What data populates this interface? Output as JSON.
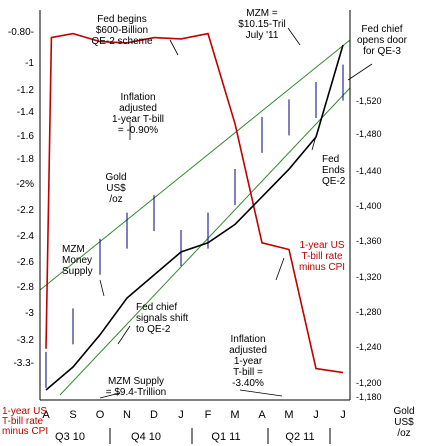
{
  "chart_data": {
    "type": "line",
    "title": "",
    "left_axis": {
      "ticks": [
        "-0.80-",
        "-1",
        "-1.2",
        "-1.4",
        "-1.6",
        "-1.8",
        "-2%",
        "-2.2",
        "-2.4",
        "-2.6",
        "-2.8",
        "-3",
        "-3.2",
        "-3.3-"
      ],
      "title_lines": [
        "1-year US",
        "T-bill rate",
        "minus CPI"
      ]
    },
    "right_axis": {
      "ticks": [
        "-1,520",
        "-1,480",
        "-1,440",
        "-1,400",
        "-1,360",
        "-1,320",
        "-1,280",
        "-1,240",
        "-1,200",
        "-1,180"
      ],
      "title_lines": [
        "Gold",
        "US$",
        "/oz"
      ]
    },
    "x_axis": {
      "months": [
        "A",
        "S",
        "O",
        "N",
        "D",
        "J",
        "F",
        "M",
        "A",
        "M",
        "J",
        "J"
      ],
      "quarters": [
        "Q3 10",
        "Q4 10",
        "Q1 11",
        "Q2 11"
      ]
    },
    "series": [
      {
        "name": "1-year US T-bill rate minus CPI",
        "color": "#c00000",
        "x": [
          "Aug-10",
          "Aug-10",
          "Sep-10",
          "Oct-10",
          "Nov-10",
          "Dec-10",
          "Jan-11",
          "Feb-11",
          "Mar-11",
          "Apr-11",
          "May-11",
          "Jun-11",
          "Jul-11"
        ],
        "values": [
          -3.2,
          -0.85,
          -0.82,
          -0.88,
          -0.89,
          -0.85,
          -0.86,
          -0.82,
          -1.5,
          -2.4,
          -2.45,
          -3.35,
          -3.38
        ]
      },
      {
        "name": "MZM Money Supply",
        "color": "#000000",
        "x": [
          "Aug-10",
          "Sep-10",
          "Oct-10",
          "Nov-10",
          "Dec-10",
          "Jan-11",
          "Feb-11",
          "Mar-11",
          "Apr-11",
          "May-11",
          "Jun-11",
          "Jul-11"
        ],
        "values": [
          9.4,
          9.45,
          9.52,
          9.6,
          9.65,
          9.7,
          9.72,
          9.76,
          9.82,
          9.88,
          9.95,
          10.15
        ]
      },
      {
        "name": "Gold US$/oz",
        "color": "#000080",
        "type": "high-low",
        "x": [
          "Aug-10",
          "Sep-10",
          "Oct-10",
          "Nov-10",
          "Dec-10",
          "Jan-11",
          "Feb-11",
          "Mar-11",
          "Apr-11",
          "May-11",
          "Jun-11",
          "Jul-11"
        ],
        "values": [
          1210,
          1260,
          1340,
          1370,
          1390,
          1350,
          1370,
          1420,
          1480,
          1500,
          1520,
          1540
        ]
      }
    ],
    "annotations": [
      {
        "lines": [
          "Fed begins",
          "$600-Billion",
          "QE-2 scheme"
        ]
      },
      {
        "lines": [
          "MZM =",
          "$10.15-Tril",
          "July '11"
        ]
      },
      {
        "lines": [
          "Fed chief",
          "opens door",
          "for QE-3"
        ]
      },
      {
        "lines": [
          "Inflation",
          "adjusted",
          "1-year T-bill",
          "= -0.90%"
        ]
      },
      {
        "lines": [
          "Gold",
          "US$",
          "/oz"
        ]
      },
      {
        "lines": [
          "Fed",
          "Ends",
          "QE-2"
        ]
      },
      {
        "lines": [
          "1-year US",
          "T-bill rate",
          "minus CPI"
        ]
      },
      {
        "lines": [
          "MZM",
          "Money",
          "Supply"
        ]
      },
      {
        "lines": [
          "Fed chief",
          "signals shift",
          "to QE-2"
        ]
      },
      {
        "lines": [
          "Inflation",
          "adjusted",
          "1-year",
          "T-bill =",
          "-3.40%"
        ]
      },
      {
        "lines": [
          "MZM Supply",
          "= $9.4-Trillion"
        ]
      }
    ]
  }
}
